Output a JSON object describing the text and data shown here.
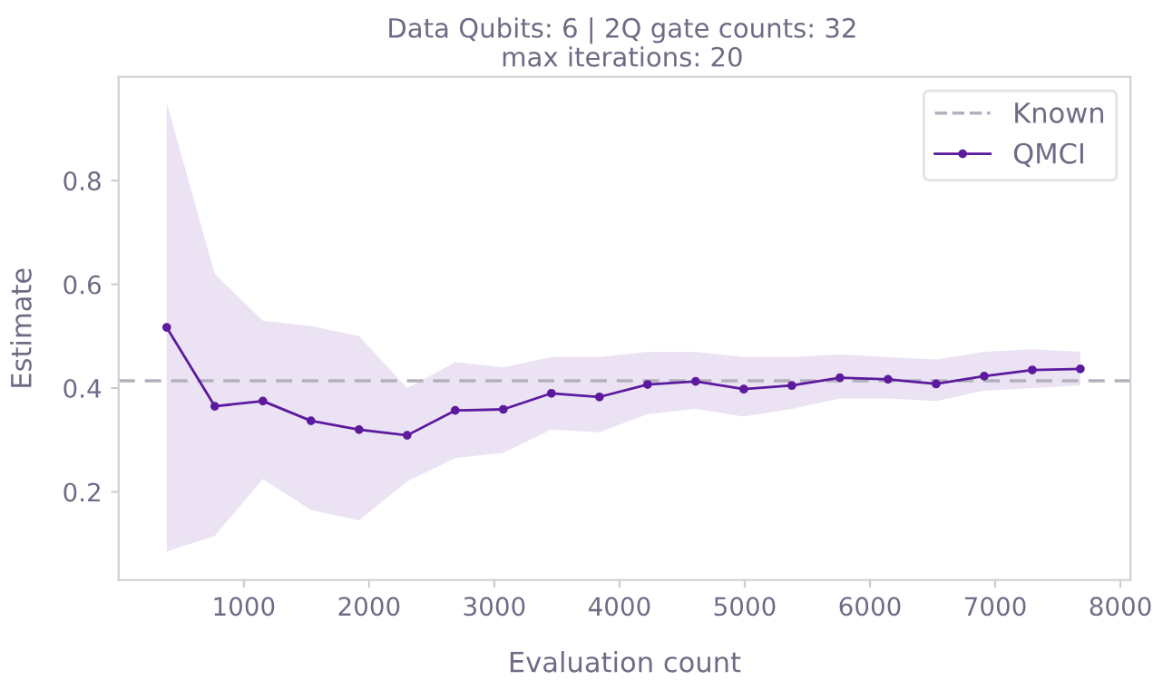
{
  "chart_data": {
    "type": "line",
    "title": "Data Qubits: 6 | 2Q gate counts: 32",
    "subtitle": "max iterations: 20",
    "xlabel": "Evaluation count",
    "ylabel": "Estimate",
    "x": [
      384,
      768,
      1152,
      1536,
      1920,
      2304,
      2688,
      3072,
      3456,
      3840,
      4224,
      4608,
      4992,
      5376,
      5760,
      6144,
      6528,
      6912,
      7296,
      7680
    ],
    "series": [
      {
        "name": "QMCI",
        "color": "#5c1a9e",
        "values": [
          0.517,
          0.365,
          0.375,
          0.337,
          0.32,
          0.309,
          0.357,
          0.359,
          0.39,
          0.383,
          0.407,
          0.413,
          0.398,
          0.405,
          0.42,
          0.417,
          0.408,
          0.423,
          0.435,
          0.437
        ],
        "lower": [
          0.085,
          0.115,
          0.225,
          0.165,
          0.145,
          0.22,
          0.265,
          0.275,
          0.32,
          0.315,
          0.35,
          0.36,
          0.345,
          0.36,
          0.38,
          0.38,
          0.375,
          0.395,
          0.4,
          0.405
        ],
        "upper": [
          0.95,
          0.62,
          0.53,
          0.52,
          0.5,
          0.4,
          0.45,
          0.44,
          0.46,
          0.46,
          0.47,
          0.47,
          0.46,
          0.46,
          0.465,
          0.46,
          0.455,
          0.47,
          0.475,
          0.47
        ]
      }
    ],
    "ref_lines": [
      {
        "axis": "y",
        "value": 0.414,
        "label": "Known",
        "color": "#b4b0bc",
        "line_style": "dashed"
      }
    ],
    "xlim": [
      0,
      8080
    ],
    "ylim": [
      0.03,
      1.0
    ],
    "xticks": [
      1000,
      2000,
      3000,
      4000,
      5000,
      6000,
      7000,
      8000
    ],
    "yticks": [
      0.2,
      0.4,
      0.6,
      0.8
    ],
    "marker": "circle",
    "line_style": "solid",
    "grid": false,
    "legend": "top right"
  }
}
